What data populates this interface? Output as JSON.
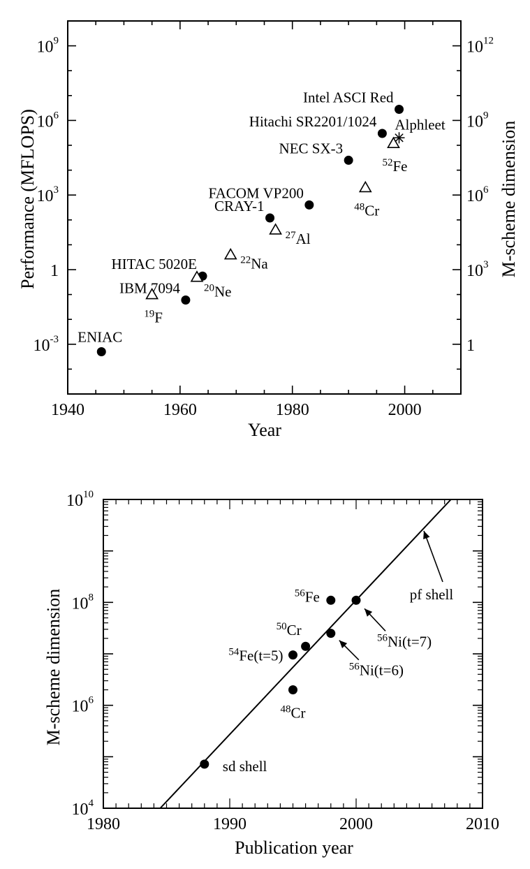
{
  "chart_data": [
    {
      "type": "scatter",
      "xlabel": "Year",
      "ylabel": "Performance (MFLOPS)",
      "y2label": "M-scheme dimension",
      "xlim": [
        1940,
        2010
      ],
      "x_ticks": [
        "1940",
        "1960",
        "1980",
        "2000"
      ],
      "y_scale": "log",
      "ylim": [
        1e-05,
        10000000000.0
      ],
      "y_ticks": [
        {
          "value": 0.001,
          "base": "10",
          "exp": "-3"
        },
        {
          "value": 1,
          "base": "1",
          "exp": ""
        },
        {
          "value": 1000,
          "base": "10",
          "exp": "3"
        },
        {
          "value": 1000000,
          "base": "10",
          "exp": "6"
        },
        {
          "value": 1000000000,
          "base": "10",
          "exp": "9"
        }
      ],
      "y2_scale": "log",
      "y2_ticks": [
        {
          "base": "1",
          "exp": ""
        },
        {
          "base": "10",
          "exp": "3"
        },
        {
          "base": "10",
          "exp": "6"
        },
        {
          "base": "10",
          "exp": "9"
        },
        {
          "base": "10",
          "exp": "12"
        }
      ],
      "grid": false,
      "series": [
        {
          "name": "",
          "marker": "circle",
          "points": [
            {
              "x": 1946,
              "y": 0.0005,
              "label": "ENIAC",
              "pos": "above"
            },
            {
              "x": 1961,
              "y": 0.06,
              "label": "IBM 7094",
              "pos": "left-above"
            },
            {
              "x": 1964,
              "y": 0.55,
              "label": "HITAC 5020E",
              "pos": "left-above2"
            },
            {
              "x": 1976,
              "y": 120,
              "label": "CRAY-1",
              "pos": "left-above"
            },
            {
              "x": 1983,
              "y": 400,
              "label": "FACOM VP200",
              "pos": "left-above2"
            },
            {
              "x": 1990,
              "y": 25000,
              "label": "NEC SX-3",
              "pos": "left-above"
            },
            {
              "x": 1996,
              "y": 300000,
              "label": "Hitachi SR2201/1024",
              "pos": "left-above"
            },
            {
              "x": 1999,
              "y": 2800000,
              "label": "Intel ASCI Red",
              "pos": "left-above"
            }
          ]
        },
        {
          "name": "",
          "marker": "triangle",
          "points": [
            {
              "x": 1955,
              "y": 0.1,
              "label_sup": "19",
              "label_main": "F",
              "pos": "below"
            },
            {
              "x": 1963,
              "y": 0.5,
              "label_sup": "20",
              "label_main": "Ne",
              "pos": "right-below"
            },
            {
              "x": 1969,
              "y": 4,
              "label_sup": "22",
              "label_main": "Na",
              "pos": "right"
            },
            {
              "x": 1977,
              "y": 40,
              "label_sup": "27",
              "label_main": "Al",
              "pos": "right"
            },
            {
              "x": 1993,
              "y": 2000,
              "label_sup": "48",
              "label_main": "Cr",
              "pos": "below"
            },
            {
              "x": 1998,
              "y": 120000,
              "label_sup": "52",
              "label_main": "Fe",
              "pos": "below"
            }
          ]
        },
        {
          "name": "",
          "marker": "asterisk",
          "points": [
            {
              "x": 1999,
              "y": 200000,
              "label": "Alphleet",
              "pos": "above"
            }
          ]
        }
      ]
    },
    {
      "type": "scatter",
      "xlabel": "Publication year",
      "ylabel": "M-scheme dimension",
      "xlim": [
        1980,
        2010
      ],
      "x_ticks": [
        "1980",
        "1990",
        "2000",
        "2010"
      ],
      "y_scale": "log",
      "ylim": [
        10000,
        10000000000
      ],
      "y_ticks": [
        {
          "value": 10000,
          "base": "10",
          "exp": "4"
        },
        {
          "value": 1000000,
          "base": "10",
          "exp": "6"
        },
        {
          "value": 100000000,
          "base": "10",
          "exp": "8"
        },
        {
          "value": 10000000000,
          "base": "10",
          "exp": "10"
        }
      ],
      "grid": false,
      "points": [
        {
          "x": 1988,
          "y": 72000,
          "label": "sd shell"
        },
        {
          "x": 1995,
          "y": 2000000,
          "label_sup": "48",
          "label_main": "Cr"
        },
        {
          "x": 1995,
          "y": 9500000,
          "label_sup": "54",
          "label_main": "Fe(t=5)"
        },
        {
          "x": 1996,
          "y": 14000000,
          "label_sup": "50",
          "label_main": "Cr"
        },
        {
          "x": 1998,
          "y": 110000000,
          "label_sup": "56",
          "label_main": "Fe"
        },
        {
          "x": 1998,
          "y": 25000000,
          "label_sup": "56",
          "label_main": "Ni(t=6)"
        },
        {
          "x": 2000,
          "y": 110000000,
          "label_sup": "56",
          "label_main": "Ni(t=7)"
        }
      ],
      "trend_line": {
        "x": [
          1984.5,
          2007.5
        ],
        "y": [
          10000,
          10000000000
        ],
        "label": "pf shell"
      }
    }
  ]
}
